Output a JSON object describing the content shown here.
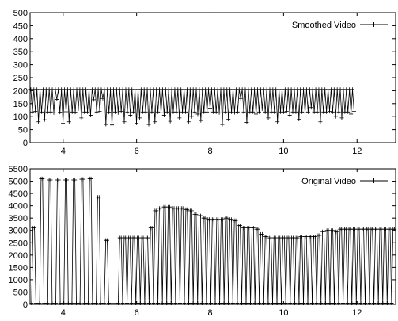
{
  "chart_data": [
    {
      "type": "line",
      "markers": "plus",
      "legend": {
        "entries": [
          "Smoothed Video"
        ],
        "position": "top-right"
      },
      "xlim": [
        3.1,
        13.05
      ],
      "ylim": [
        0,
        500
      ],
      "xticks": [
        4,
        6,
        8,
        10,
        12
      ],
      "yticks": [
        0,
        50,
        100,
        150,
        200,
        250,
        300,
        350,
        400,
        450,
        500
      ],
      "grid": false,
      "series": [
        {
          "name": "Smoothed Video",
          "color": "#000000",
          "x_start": 3.12,
          "x_step": 0.0417,
          "values": [
            205,
            118,
            205,
            120,
            205,
            80,
            205,
            118,
            205,
            88,
            205,
            118,
            205,
            118,
            205,
            115,
            205,
            166,
            205,
            117,
            205,
            75,
            205,
            119,
            205,
            80,
            205,
            118,
            205,
            117,
            205,
            130,
            205,
            95,
            205,
            118,
            205,
            118,
            205,
            105,
            205,
            165,
            205,
            118,
            205,
            120,
            205,
            170,
            205,
            70,
            205,
            117,
            205,
            68,
            205,
            118,
            205,
            115,
            205,
            120,
            205,
            80,
            205,
            118,
            205,
            105,
            205,
            118,
            205,
            75,
            205,
            95,
            205,
            118,
            205,
            118,
            205,
            70,
            205,
            118,
            205,
            80,
            205,
            118,
            205,
            115,
            205,
            105,
            205,
            118,
            205,
            82,
            205,
            118,
            205,
            118,
            205,
            95,
            205,
            118,
            205,
            118,
            205,
            80,
            205,
            100,
            205,
            118,
            205,
            110,
            205,
            85,
            205,
            118,
            205,
            118,
            205,
            132,
            205,
            118,
            205,
            118,
            205,
            115,
            205,
            70,
            205,
            118,
            205,
            90,
            205,
            118,
            205,
            116,
            205,
            118,
            205,
            170,
            205,
            118,
            205,
            78,
            205,
            118,
            205,
            118,
            205,
            110,
            205,
            118,
            205,
            130,
            205,
            118,
            205,
            95,
            205,
            118,
            205,
            118,
            205,
            80,
            205,
            118,
            205,
            118,
            205,
            120,
            205,
            105,
            205,
            118,
            205,
            118,
            205,
            90,
            205,
            118,
            205,
            115,
            205,
            118,
            205,
            135,
            205,
            118,
            205,
            118,
            205,
            80,
            205,
            118,
            205,
            118,
            205,
            120,
            205,
            118,
            205,
            100,
            205,
            118,
            205,
            95,
            205,
            118,
            205,
            118,
            205,
            110,
            205,
            120
          ]
        }
      ]
    },
    {
      "type": "line",
      "markers": "plus",
      "legend": {
        "entries": [
          "Original Video"
        ],
        "position": "top-right"
      },
      "xlim": [
        3.1,
        13.05
      ],
      "ylim": [
        0,
        5500
      ],
      "xticks": [
        4,
        6,
        8,
        10,
        12
      ],
      "yticks": [
        0,
        500,
        1000,
        1500,
        2000,
        2500,
        3000,
        3500,
        4000,
        4500,
        5000,
        5500
      ],
      "grid": false,
      "series": [
        {
          "name": "Original Video",
          "color": "#000000",
          "frame_times": [
            3.2,
            3.42,
            3.64,
            3.86,
            4.08,
            4.3,
            4.52,
            4.74,
            4.96,
            5.18,
            5.56,
            5.68,
            5.8,
            5.92,
            6.04,
            6.16,
            6.28,
            6.4,
            6.52,
            6.64,
            6.76,
            6.88,
            7.0,
            7.12,
            7.24,
            7.36,
            7.48,
            7.6,
            7.72,
            7.84,
            7.96,
            8.08,
            8.2,
            8.32,
            8.44,
            8.56,
            8.68,
            8.8,
            8.92,
            9.04,
            9.16,
            9.28,
            9.4,
            9.52,
            9.64,
            9.76,
            9.88,
            10.0,
            10.12,
            10.24,
            10.36,
            10.48,
            10.6,
            10.72,
            10.84,
            10.96,
            11.08,
            11.2,
            11.32,
            11.44,
            11.56,
            11.68,
            11.8,
            11.92,
            12.04,
            12.16,
            12.28,
            12.4,
            12.52,
            12.64,
            12.76,
            12.88,
            13.0
          ],
          "frame_peaks": [
            3100,
            5100,
            5050,
            5050,
            5050,
            5050,
            5080,
            5100,
            4350,
            2600,
            2700,
            2700,
            2700,
            2700,
            2700,
            2700,
            2700,
            3100,
            3800,
            3900,
            3950,
            3950,
            3900,
            3900,
            3900,
            3850,
            3800,
            3650,
            3600,
            3500,
            3450,
            3450,
            3450,
            3450,
            3500,
            3450,
            3400,
            3200,
            3100,
            3100,
            3100,
            3050,
            2850,
            2750,
            2700,
            2700,
            2700,
            2700,
            2700,
            2700,
            2700,
            2750,
            2750,
            2750,
            2750,
            2800,
            2950,
            3000,
            3000,
            2950,
            3050,
            3050,
            3050,
            3050,
            3050,
            3050,
            3050,
            3050,
            3050,
            3050,
            3050,
            3050,
            3050
          ],
          "trough": 50
        }
      ]
    }
  ]
}
